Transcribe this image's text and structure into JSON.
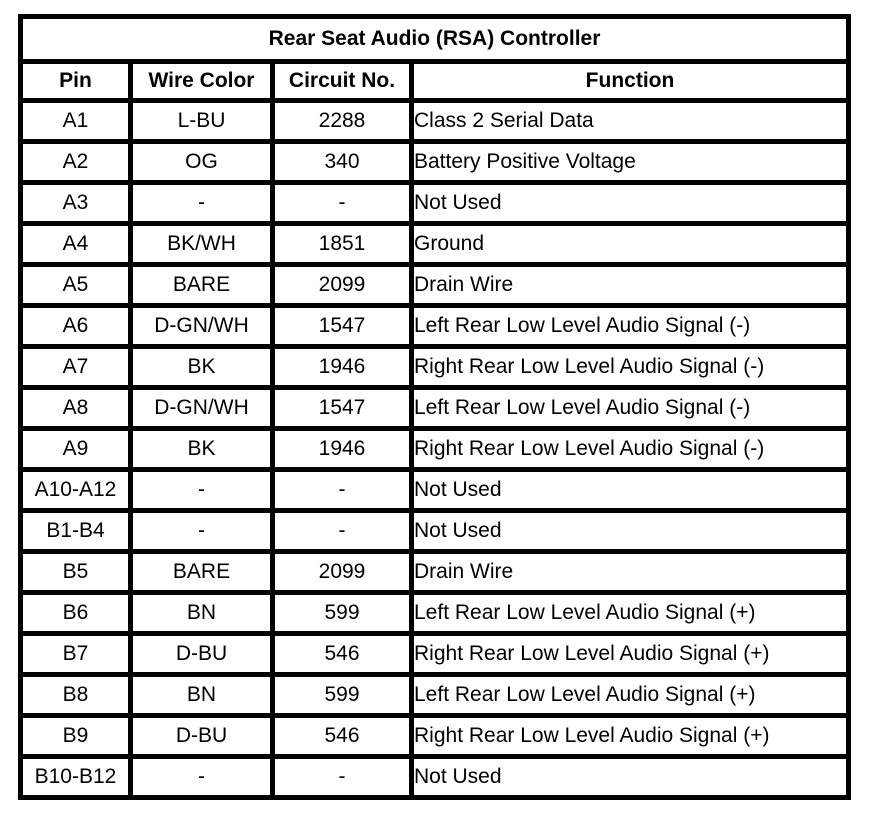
{
  "table": {
    "title": "Rear Seat Audio (RSA) Controller",
    "columns": [
      "Pin",
      "Wire Color",
      "Circuit No.",
      "Function"
    ],
    "rows": [
      [
        "A1",
        "L-BU",
        "2288",
        "Class 2 Serial Data"
      ],
      [
        "A2",
        "OG",
        "340",
        "Battery Positive Voltage"
      ],
      [
        "A3",
        "-",
        "-",
        "Not Used"
      ],
      [
        "A4",
        "BK/WH",
        "1851",
        "Ground"
      ],
      [
        "A5",
        "BARE",
        "2099",
        "Drain Wire"
      ],
      [
        "A6",
        "D-GN/WH",
        "1547",
        "Left Rear Low Level Audio Signal (-)"
      ],
      [
        "A7",
        "BK",
        "1946",
        "Right Rear Low Level Audio Signal (-)"
      ],
      [
        "A8",
        "D-GN/WH",
        "1547",
        "Left Rear Low Level Audio Signal (-)"
      ],
      [
        "A9",
        "BK",
        "1946",
        "Right Rear Low Level Audio Signal (-)"
      ],
      [
        "A10-A12",
        "-",
        "-",
        "Not Used"
      ],
      [
        "B1-B4",
        "-",
        "-",
        "Not Used"
      ],
      [
        "B5",
        "BARE",
        "2099",
        "Drain Wire"
      ],
      [
        "B6",
        "BN",
        "599",
        "Left Rear Low Level Audio Signal (+)"
      ],
      [
        "B7",
        "D-BU",
        "546",
        "Right Rear Low Level Audio Signal (+)"
      ],
      [
        "B8",
        "BN",
        "599",
        "Left Rear Low Level Audio Signal (+)"
      ],
      [
        "B9",
        "D-BU",
        "546",
        "Right Rear Low Level Audio Signal (+)"
      ],
      [
        "B10-B12",
        "-",
        "-",
        "Not Used"
      ]
    ],
    "colors": {
      "text": "#000000",
      "border": "#000000",
      "background": "#ffffff"
    }
  }
}
